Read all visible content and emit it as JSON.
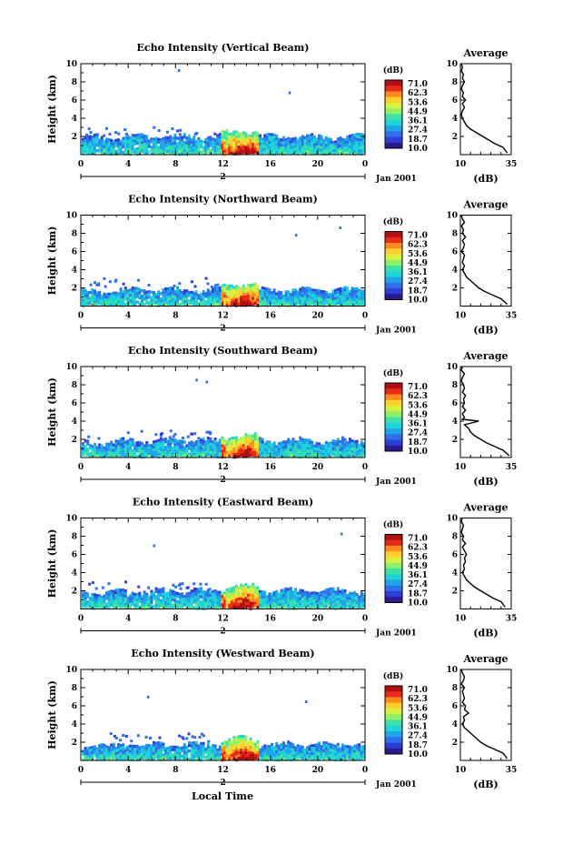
{
  "figure": {
    "xlabel": "Local Time",
    "date_label": "Jan 2001",
    "day_label": "2"
  },
  "colorbar": {
    "unit": "(dB)",
    "ticks": [
      "71.0",
      "62.3",
      "53.6",
      "44.9",
      "36.1",
      "27.4",
      "18.7",
      "10.0"
    ],
    "colors": [
      "#2b1a8c",
      "#2e3fd6",
      "#2f6fe8",
      "#20a6e8",
      "#1fd3d8",
      "#3fe0a8",
      "#8ef06a",
      "#d8f040",
      "#ffd030",
      "#ff8a20",
      "#e82a18",
      "#b01010"
    ]
  },
  "chart_data": [
    {
      "type": "heatmap",
      "title": "Echo Intensity (Vertical Beam)",
      "ylabel": "Height (km)",
      "xlim": [
        0,
        24
      ],
      "ylim": [
        0,
        10
      ],
      "x_ticks": [
        "0",
        "4",
        "8",
        "12",
        "16",
        "20",
        "0"
      ],
      "y_ticks": [
        "2",
        "4",
        "6",
        "8",
        "10"
      ],
      "echo_top_km": 3.2,
      "core_hours": [
        11.8,
        15.0
      ],
      "profile": {
        "title": "Average",
        "xlabel": "(dB)",
        "xlim": [
          10,
          35
        ],
        "ylim": [
          0,
          10
        ],
        "x_ticks": [
          "10",
          "35"
        ],
        "y_ticks": [
          "2",
          "4",
          "6",
          "8",
          "10"
        ],
        "height_km": [
          0.2,
          0.8,
          1.2,
          1.6,
          2.0,
          2.4,
          2.8,
          3.2,
          3.6,
          4.0,
          4.4,
          4.8,
          5.2,
          5.6,
          6.0,
          6.4,
          6.8,
          7.2,
          7.6,
          8.0,
          8.4,
          8.8,
          9.2,
          9.6,
          10.0
        ],
        "db": [
          33,
          31,
          27,
          24,
          21,
          18,
          15,
          13,
          12,
          11,
          10.5,
          11,
          12,
          11,
          12.5,
          11,
          11.5,
          10.5,
          11,
          12,
          11,
          11.5,
          10.5,
          11,
          10.5
        ]
      }
    },
    {
      "type": "heatmap",
      "title": "Echo Intensity (Northward Beam)",
      "ylabel": "Height (km)",
      "xlim": [
        0,
        24
      ],
      "ylim": [
        0,
        10
      ],
      "x_ticks": [
        "0",
        "4",
        "8",
        "12",
        "16",
        "20",
        "0"
      ],
      "y_ticks": [
        "2",
        "4",
        "6",
        "8",
        "10"
      ],
      "echo_top_km": 3.0,
      "core_hours": [
        11.8,
        15.0
      ],
      "profile": {
        "title": "Average",
        "xlabel": "(dB)",
        "xlim": [
          10,
          35
        ],
        "ylim": [
          0,
          10
        ],
        "x_ticks": [
          "10",
          "35"
        ],
        "y_ticks": [
          "2",
          "4",
          "6",
          "8",
          "10"
        ],
        "height_km": [
          0.2,
          0.8,
          1.2,
          1.6,
          2.0,
          2.4,
          2.8,
          3.2,
          3.6,
          4.0,
          4.4,
          4.8,
          5.2,
          5.6,
          6.0,
          6.4,
          6.8,
          7.2,
          7.6,
          8.0,
          8.4,
          8.8,
          9.2,
          9.6,
          10.0
        ],
        "db": [
          33,
          30,
          26,
          22,
          19,
          17,
          15,
          13,
          12,
          11,
          12,
          11,
          11.5,
          12,
          10.5,
          11.5,
          12,
          11,
          12.5,
          11,
          11.5,
          10.5,
          12,
          11,
          10.5
        ]
      }
    },
    {
      "type": "heatmap",
      "title": "Echo Intensity (Southward Beam)",
      "ylabel": "Height (km)",
      "xlim": [
        0,
        24
      ],
      "ylim": [
        0,
        10
      ],
      "x_ticks": [
        "0",
        "4",
        "8",
        "12",
        "16",
        "20",
        "0"
      ],
      "y_ticks": [
        "2",
        "4",
        "6",
        "8",
        "10"
      ],
      "echo_top_km": 3.1,
      "core_hours": [
        11.8,
        15.0
      ],
      "profile": {
        "title": "Average",
        "xlabel": "(dB)",
        "xlim": [
          10,
          35
        ],
        "ylim": [
          0,
          10
        ],
        "x_ticks": [
          "10",
          "35"
        ],
        "y_ticks": [
          "2",
          "4",
          "6",
          "8",
          "10"
        ],
        "height_km": [
          0.2,
          0.8,
          1.2,
          1.6,
          2.0,
          2.4,
          2.8,
          3.2,
          3.6,
          4.0,
          4.2,
          4.4,
          4.8,
          5.2,
          5.6,
          6.0,
          6.4,
          6.8,
          7.2,
          7.6,
          8.0,
          8.4,
          8.8,
          9.2,
          9.6,
          10.0
        ],
        "db": [
          34,
          31,
          27,
          23,
          20,
          17,
          15,
          14,
          12,
          19,
          11,
          12,
          11,
          12.5,
          11,
          12,
          11.5,
          12.5,
          11,
          12,
          11.5,
          10.5,
          11,
          12,
          10.5,
          11
        ]
      }
    },
    {
      "type": "heatmap",
      "title": "Echo Intensity (Eastward Beam)",
      "ylabel": "Height (km)",
      "xlim": [
        0,
        24
      ],
      "ylim": [
        0,
        10
      ],
      "x_ticks": [
        "0",
        "4",
        "8",
        "12",
        "16",
        "20",
        "0"
      ],
      "y_ticks": [
        "2",
        "4",
        "6",
        "8",
        "10"
      ],
      "echo_top_km": 3.2,
      "core_hours": [
        11.8,
        15.0
      ],
      "profile": {
        "title": "Average",
        "xlabel": "(dB)",
        "xlim": [
          10,
          35
        ],
        "ylim": [
          0,
          10
        ],
        "x_ticks": [
          "10",
          "35"
        ],
        "y_ticks": [
          "2",
          "4",
          "6",
          "8",
          "10"
        ],
        "height_km": [
          0.2,
          0.8,
          1.2,
          1.6,
          2.0,
          2.4,
          2.8,
          3.2,
          3.6,
          4.0,
          4.4,
          4.8,
          5.2,
          5.6,
          6.0,
          6.4,
          6.8,
          7.2,
          7.6,
          8.0,
          8.4,
          8.8,
          9.2,
          9.6,
          10.0
        ],
        "db": [
          32,
          30,
          26,
          23,
          20,
          17,
          15,
          13,
          12,
          11,
          12,
          11.5,
          12.5,
          12,
          13,
          12,
          11,
          12.5,
          11,
          11.5,
          10.5,
          11,
          11.5,
          10.5,
          11
        ]
      }
    },
    {
      "type": "heatmap",
      "title": "Echo Intensity (Westward Beam)",
      "ylabel": "Height (km)",
      "xlim": [
        0,
        24
      ],
      "ylim": [
        0,
        10
      ],
      "x_ticks": [
        "0",
        "4",
        "8",
        "12",
        "16",
        "20",
        "0"
      ],
      "y_ticks": [
        "2",
        "4",
        "6",
        "8",
        "10"
      ],
      "echo_top_km": 3.0,
      "core_hours": [
        11.8,
        15.0
      ],
      "profile": {
        "title": "Average",
        "xlabel": "(dB)",
        "xlim": [
          10,
          35
        ],
        "ylim": [
          0,
          10
        ],
        "x_ticks": [
          "10",
          "35"
        ],
        "y_ticks": [
          "2",
          "4",
          "6",
          "8",
          "10"
        ],
        "height_km": [
          0.2,
          0.8,
          1.2,
          1.6,
          2.0,
          2.4,
          2.8,
          3.2,
          3.6,
          4.0,
          4.4,
          4.8,
          5.2,
          5.6,
          6.0,
          6.4,
          6.8,
          7.2,
          7.6,
          8.0,
          8.4,
          8.8,
          9.2,
          9.6,
          10.0
        ],
        "db": [
          33,
          31,
          27,
          23,
          20,
          18,
          16,
          14,
          12,
          11,
          12,
          11.5,
          14,
          12,
          12.5,
          11,
          12,
          11.5,
          11,
          12,
          10.5,
          11.5,
          12,
          11,
          10.5
        ]
      }
    }
  ]
}
